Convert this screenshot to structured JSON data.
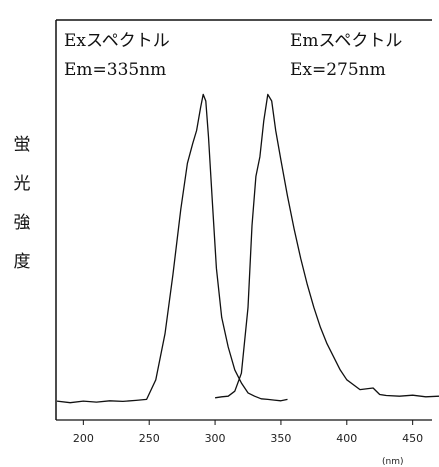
{
  "chart_data": {
    "type": "line",
    "xlabel_unit": "(nm)",
    "ylabel": "蛍光強度",
    "xlim": [
      180,
      470
    ],
    "ylim": [
      0,
      100
    ],
    "xticks": [
      200,
      250,
      300,
      350,
      400,
      450
    ],
    "grid": false,
    "series": [
      {
        "name": "Exスペクトル",
        "condition": "Em=335nm",
        "x": [
          180,
          190,
          200,
          210,
          220,
          230,
          240,
          248,
          255,
          262,
          268,
          274,
          279,
          283,
          286,
          289,
          291,
          293,
          295,
          298,
          301,
          305,
          310,
          315,
          320,
          325,
          330,
          335,
          340,
          345,
          350,
          355
        ],
        "y": [
          1.5,
          1.0,
          1.5,
          1.2,
          1.6,
          1.4,
          1.7,
          2.0,
          8,
          22,
          40,
          60,
          74,
          80,
          84,
          91,
          95,
          93,
          82,
          62,
          42,
          27,
          18,
          11,
          7,
          4,
          3,
          2.2,
          2.0,
          1.8,
          1.6,
          2.0
        ]
      },
      {
        "name": "Emスペクトル",
        "condition": "Ex=275nm",
        "x": [
          300,
          305,
          310,
          315,
          320,
          325,
          328,
          331,
          334,
          337,
          340,
          343,
          346,
          350,
          355,
          360,
          365,
          370,
          375,
          380,
          385,
          390,
          395,
          400,
          410,
          420,
          425,
          430,
          440,
          450,
          460,
          470
        ],
        "y": [
          2.5,
          2.8,
          3.0,
          4.5,
          10,
          30,
          55,
          70,
          76,
          87,
          95,
          93,
          84,
          75,
          64,
          54,
          45,
          37,
          30,
          24,
          19,
          15,
          11,
          8,
          5,
          5.5,
          3.5,
          3.2,
          3.0,
          3.3,
          2.8,
          3.0
        ]
      }
    ]
  }
}
